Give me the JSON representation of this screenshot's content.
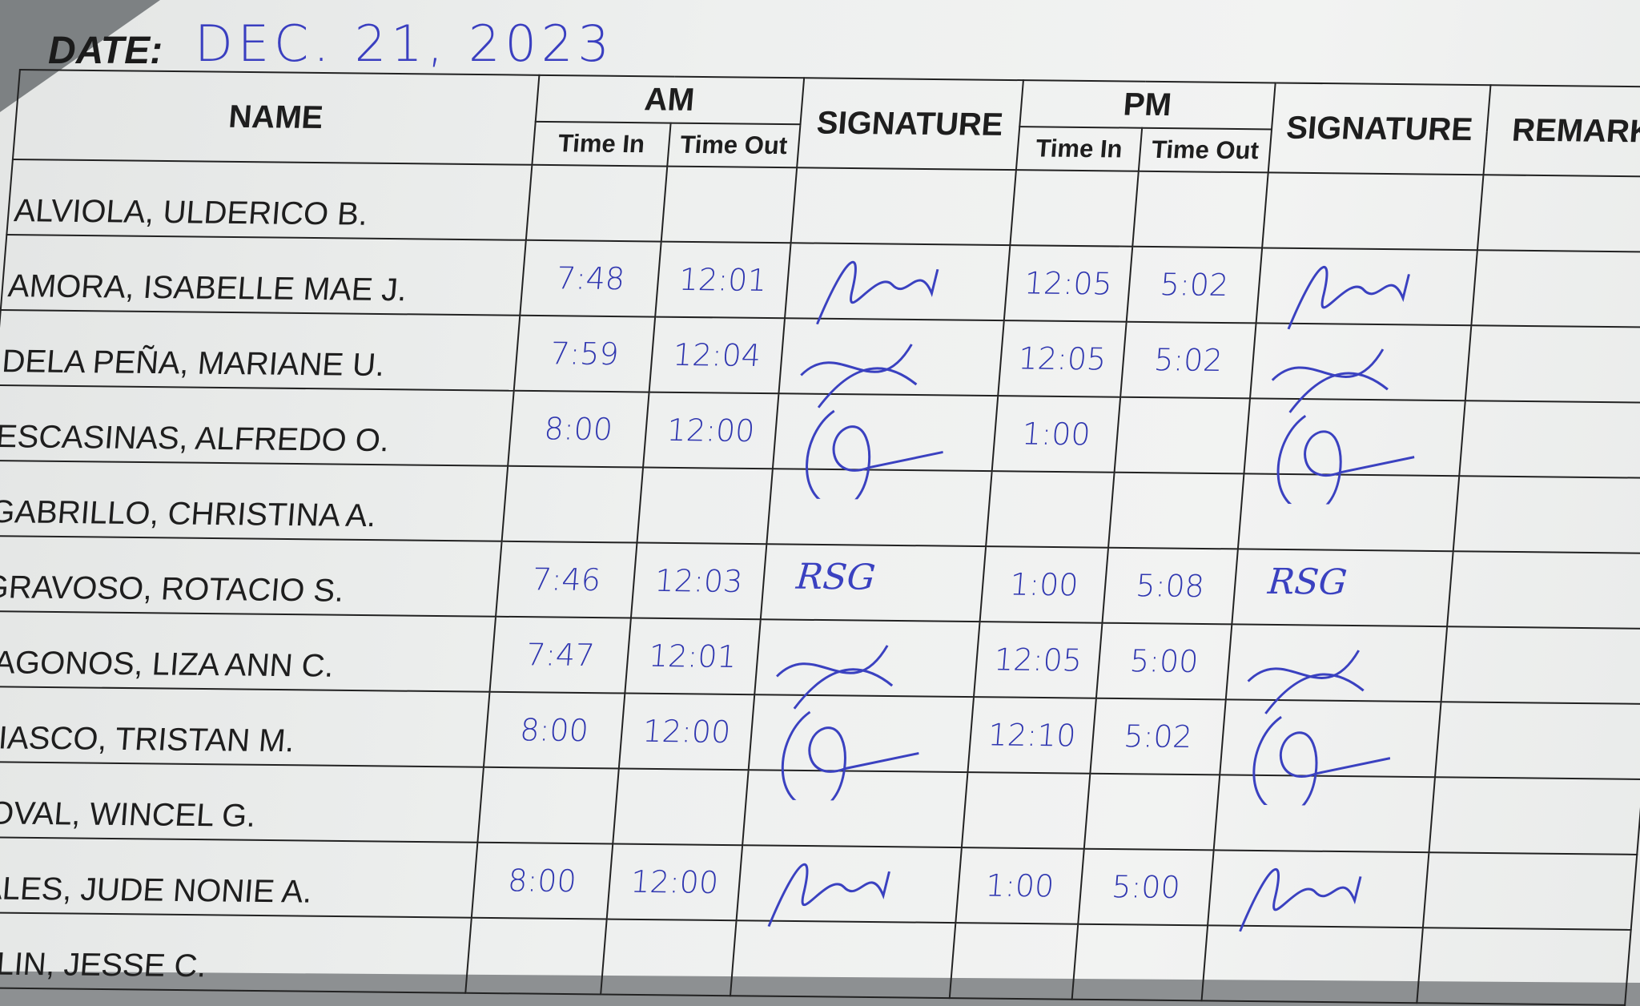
{
  "header": {
    "date_label": "DATE:",
    "date_value": "DEC. 21, 2023"
  },
  "columns": {
    "name": "NAME",
    "am": "AM",
    "pm": "PM",
    "signature": "SIGNATURE",
    "remarks": "REMARKS",
    "time_in": "Time In",
    "time_out": "Time Out"
  },
  "ink_color": "#3a41c0",
  "rows": [
    {
      "name": "ALVIOLA, ULDERICO B.",
      "am_in": "",
      "am_out": "",
      "pm_in": "",
      "pm_out": "",
      "signed": false
    },
    {
      "name": "AMORA, ISABELLE MAE J.",
      "am_in": "7:48",
      "am_out": "12:01",
      "pm_in": "12:05",
      "pm_out": "5:02",
      "signed": true
    },
    {
      "name": "DELA PEÑA, MARIANE U.",
      "am_in": "7:59",
      "am_out": "12:04",
      "pm_in": "12:05",
      "pm_out": "5:02",
      "signed": true
    },
    {
      "name": "ESCASINAS, ALFREDO O.",
      "am_in": "8:00",
      "am_out": "12:00",
      "pm_in": "1:00",
      "pm_out": "",
      "signed": true
    },
    {
      "name": "GABRILLO, CHRISTINA A.",
      "am_in": "",
      "am_out": "",
      "pm_in": "",
      "pm_out": "",
      "signed": false
    },
    {
      "name": "GRAVOSO, ROTACIO S.",
      "am_in": "7:46",
      "am_out": "12:03",
      "pm_in": "1:00",
      "pm_out": "5:08",
      "signed": true,
      "signature_text": "RSG"
    },
    {
      "name": "JAGONOS, LIZA ANN C.",
      "am_in": "7:47",
      "am_out": "12:01",
      "pm_in": "12:05",
      "pm_out": "5:00",
      "signed": true
    },
    {
      "name": "MIASCO, TRISTAN M.",
      "am_in": "8:00",
      "am_out": "12:00",
      "pm_in": "12:10",
      "pm_out": "5:02",
      "signed": true
    },
    {
      "name": "NOVAL, WINCEL G.",
      "am_in": "",
      "am_out": "",
      "pm_in": "",
      "pm_out": "",
      "signed": false
    },
    {
      "name": "SALES, JUDE NONIE A.",
      "am_in": "8:00",
      "am_out": "12:00",
      "pm_in": "1:00",
      "pm_out": "5:00",
      "signed": true
    },
    {
      "name": "TULIN, JESSE C.",
      "am_in": "",
      "am_out": "",
      "pm_in": "",
      "pm_out": "",
      "signed": false
    }
  ]
}
